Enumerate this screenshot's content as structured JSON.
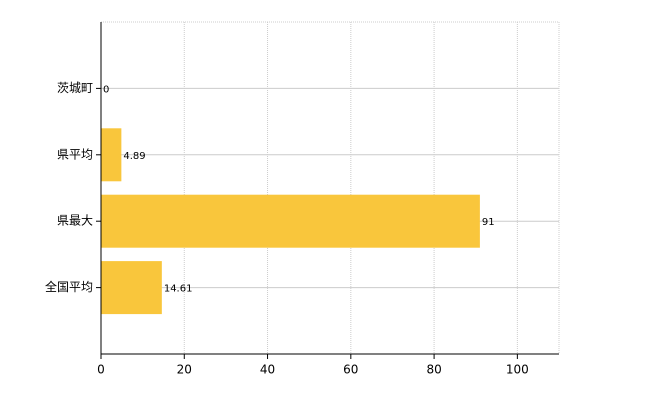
{
  "chart_data": {
    "type": "barh",
    "categories": [
      "茨城町",
      "県平均",
      "県最大",
      "全国平均"
    ],
    "values": [
      0,
      4.89,
      91,
      14.61
    ],
    "color": "#f9c63c",
    "xlim": [
      0,
      110
    ],
    "xticks": [
      0,
      20,
      40,
      60,
      80,
      100
    ],
    "grid": true
  }
}
